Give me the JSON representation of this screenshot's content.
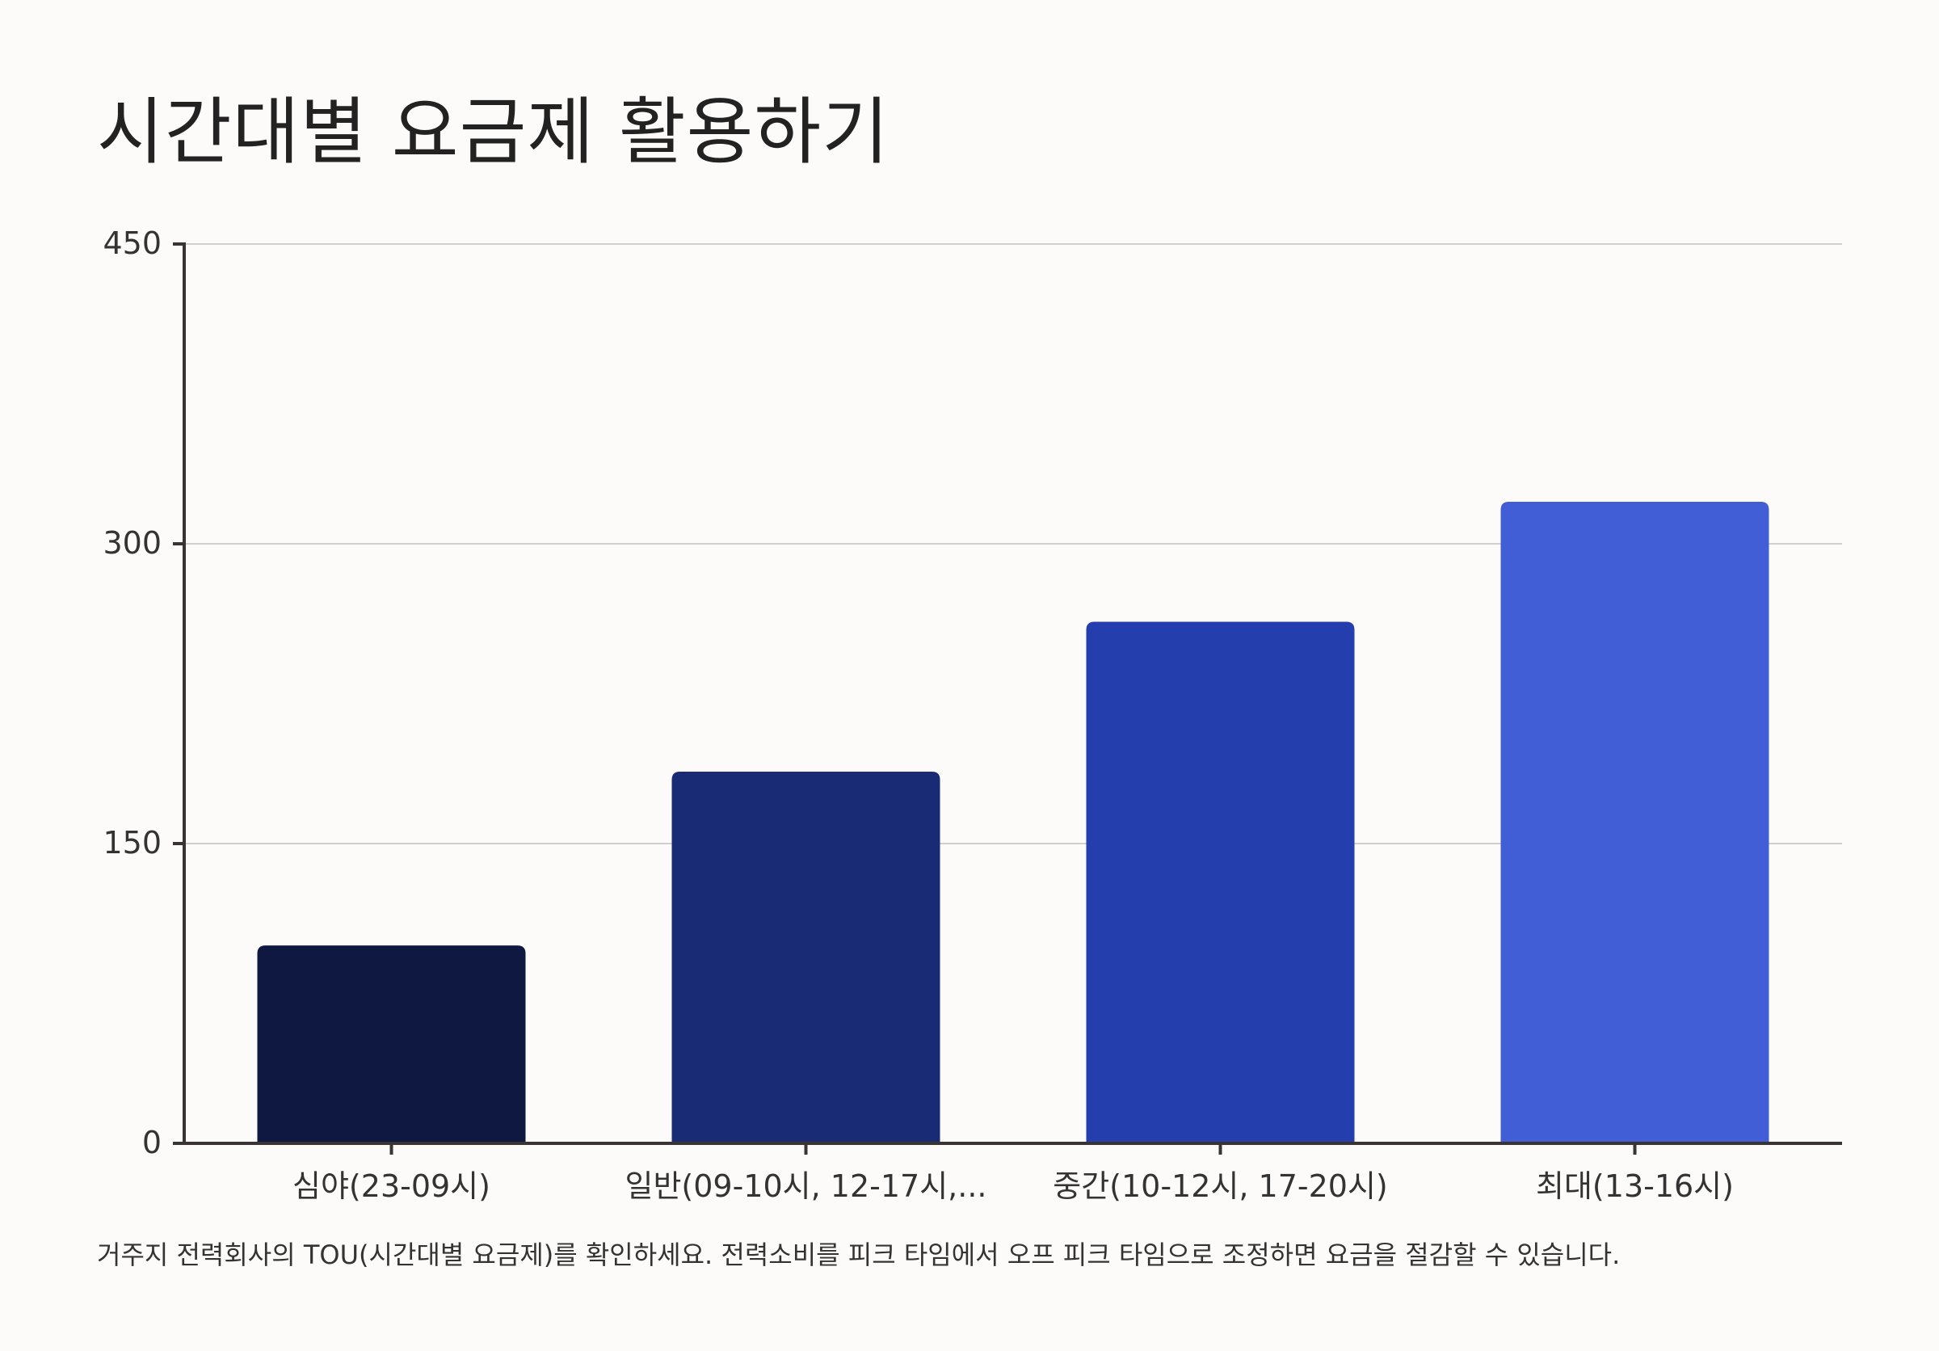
{
  "title": "시간대별 요금제 활용하기",
  "footnote": "거주지 전력회사의 TOU(시간대별 요금제)를 확인하세요. 전력소비를 피크 타임에서 오프 피크 타임으로 조정하면 요금을 절감할 수 있습니다.",
  "chart_data": {
    "type": "bar",
    "categories": [
      "심야(23-09시)",
      "일반(09-10시, 12-17시,...",
      "중간(10-12시, 17-20시)",
      "최대(13-16시)"
    ],
    "values": [
      99,
      186,
      261,
      321
    ],
    "ylim": [
      0,
      450
    ],
    "yticks": [
      "0",
      "150",
      "300",
      "450"
    ],
    "grid": true,
    "colors": [
      "#0f1840",
      "#1a2b76",
      "#253eae",
      "#415ed6"
    ]
  }
}
